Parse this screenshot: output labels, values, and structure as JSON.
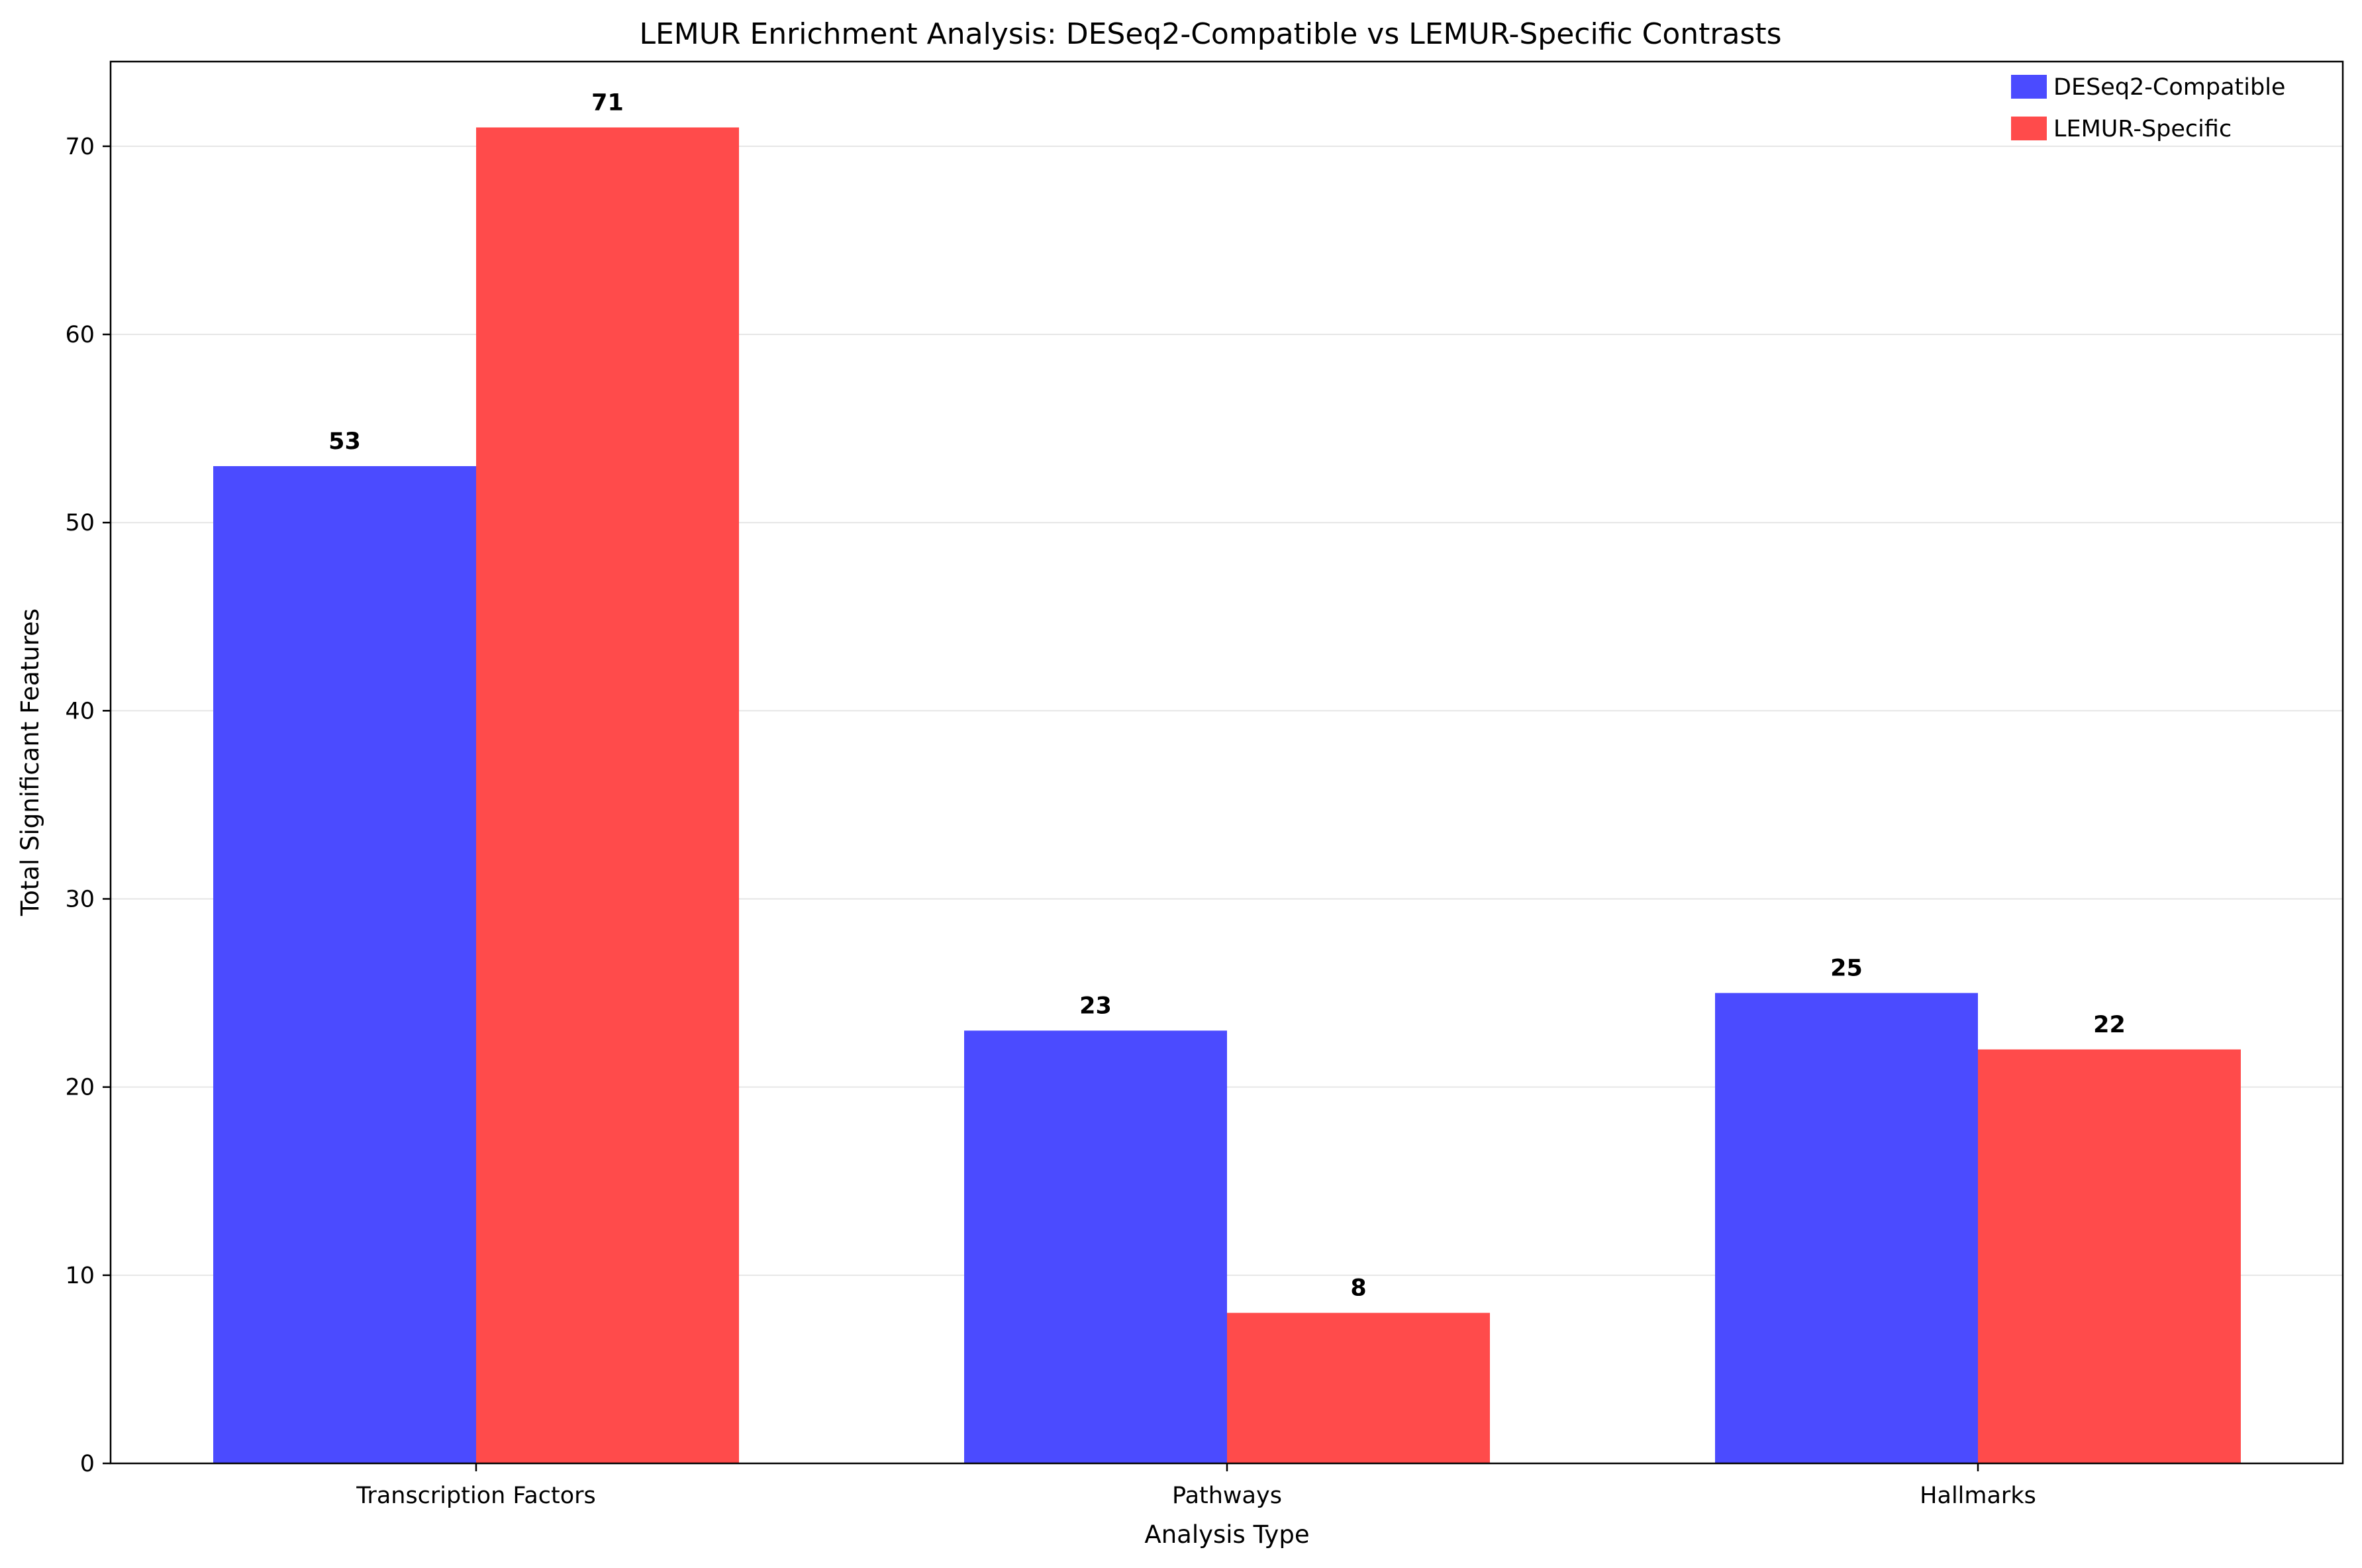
{
  "chart_data": {
    "type": "bar",
    "title": "LEMUR Enrichment Analysis: DESeq2-Compatible vs LEMUR-Specific Contrasts",
    "xlabel": "Analysis Type",
    "ylabel": "Total Significant Features",
    "categories": [
      "Transcription Factors",
      "Pathways",
      "Hallmarks"
    ],
    "series": [
      {
        "name": "DESeq2-Compatible",
        "color": "#4b4bff",
        "values": [
          53,
          23,
          25
        ]
      },
      {
        "name": "LEMUR-Specific",
        "color": "#ff4b4b",
        "values": [
          71,
          8,
          22
        ]
      }
    ],
    "ylim": [
      0,
      74.5
    ],
    "yticks": [
      0,
      10,
      20,
      30,
      40,
      50,
      60,
      70
    ],
    "grid": "y",
    "legend_position": "top-right"
  }
}
